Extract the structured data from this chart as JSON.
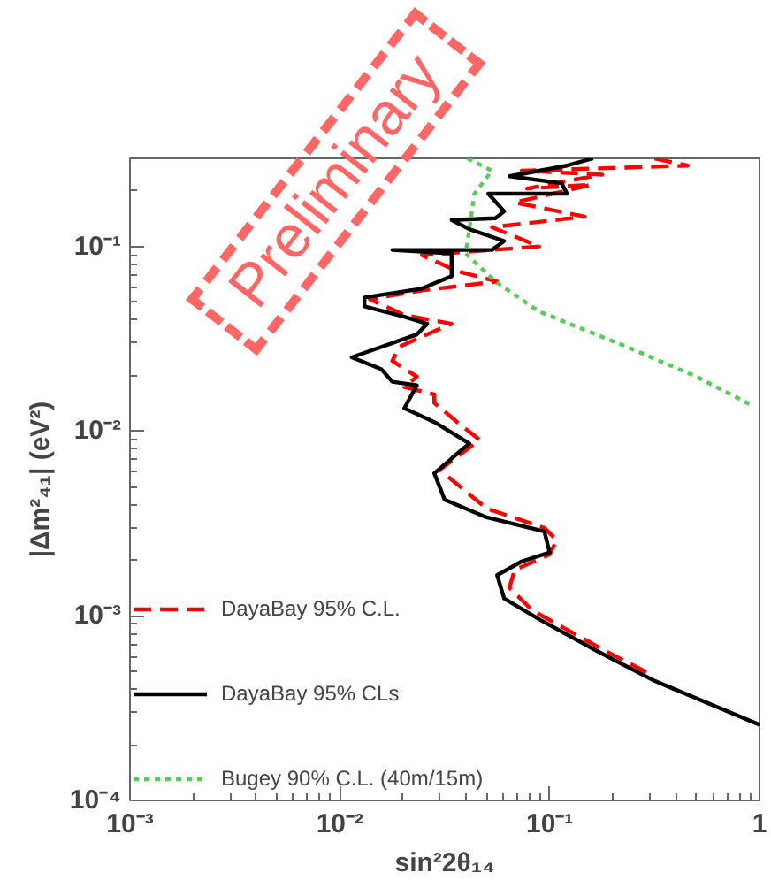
{
  "chart_data": {
    "type": "line",
    "xlabel": "sin²2θ₁₄",
    "ylabel": "|Δm²₄₁| (eV²)",
    "log": "xy",
    "grid": false,
    "legend": "bottom left",
    "marker": "none",
    "xlim": [
      0.001,
      1
    ],
    "ylim": [
      0.0001,
      0.3
    ],
    "xticks": [
      {
        "value": 0.001,
        "label": "10⁻³"
      },
      {
        "value": 0.01,
        "label": "10⁻²"
      },
      {
        "value": 0.1,
        "label": "10⁻¹"
      },
      1
    ],
    "yticks": [
      {
        "value": 0.0001,
        "label": "10⁻⁴"
      },
      {
        "value": 0.001,
        "label": "10⁻³"
      },
      {
        "value": 0.01,
        "label": "10⁻²"
      },
      {
        "value": 0.1,
        "label": "10⁻¹"
      }
    ],
    "annotations": [
      "Preliminary"
    ],
    "series": [
      {
        "name": "DayaBay 95% C.L.",
        "color": "#ff0000",
        "line_style": "dashed",
        "x": [
          0.316,
          0.455,
          0.0736,
          0.178,
          0.078,
          0.158,
          0.0681,
          0.147,
          0.0531,
          0.0891,
          0.0246,
          0.0362,
          0.0562,
          0.0246,
          0.0139,
          0.0203,
          0.0341,
          0.0261,
          0.0192,
          0.0178,
          0.0233,
          0.0203,
          0.0282,
          0.0282,
          0.0362,
          0.0464,
          0.0299,
          0.0501,
          0.0944,
          0.108,
          0.1,
          0.0681,
          0.0643,
          0.0826,
          0.178,
          0.299
        ],
        "values": [
          0.3,
          0.274,
          0.257,
          0.245,
          0.206,
          0.216,
          0.173,
          0.145,
          0.127,
          0.1,
          0.0896,
          0.0736,
          0.0645,
          0.0578,
          0.0518,
          0.0425,
          0.0381,
          0.0334,
          0.0286,
          0.024,
          0.0197,
          0.0173,
          0.0158,
          0.0142,
          0.0112,
          0.00896,
          0.00617,
          0.00381,
          0.00299,
          0.00257,
          0.00215,
          0.00177,
          0.00142,
          0.00107,
          0.000659,
          0.000485
        ]
      },
      {
        "name": "DayaBay 95% CLs",
        "color": "#000000",
        "line_style": "solid",
        "x": [
          0.161,
          0.121,
          0.0643,
          0.114,
          0.121,
          0.051,
          0.0607,
          0.0552,
          0.0341,
          0.0414,
          0.0607,
          0.0531,
          0.0178,
          0.0341,
          0.0341,
          0.0246,
          0.0131,
          0.0131,
          0.0203,
          0.0261,
          0.0233,
          0.0114,
          0.0158,
          0.0178,
          0.0233,
          0.0203,
          0.0282,
          0.0414,
          0.0282,
          0.0316,
          0.0501,
          0.0944,
          0.1,
          0.0736,
          0.0562,
          0.0607,
          0.0891,
          0.168,
          0.316,
          1.0
        ],
        "values": [
          0.3,
          0.274,
          0.24,
          0.22,
          0.193,
          0.193,
          0.155,
          0.142,
          0.139,
          0.124,
          0.107,
          0.0957,
          0.0957,
          0.0916,
          0.0689,
          0.0591,
          0.0529,
          0.0474,
          0.0416,
          0.0381,
          0.0334,
          0.0251,
          0.0216,
          0.0185,
          0.0177,
          0.0133,
          0.0112,
          0.00858,
          0.00591,
          0.00425,
          0.00341,
          0.00286,
          0.0022,
          0.00197,
          0.00166,
          0.00124,
          0.000957,
          0.000645,
          0.000444,
          0.000257
        ]
      },
      {
        "name": "Bugey 90% C.L. (40m/15m)",
        "color": "#55cc55",
        "line_style": "dotted",
        "x": [
          0.0406,
          0.0531,
          0.0438,
          0.0414,
          0.0398,
          0.0552,
          0.0891,
          0.233,
          0.501,
          0.908
        ],
        "values": [
          0.3,
          0.257,
          0.193,
          0.124,
          0.0916,
          0.0645,
          0.0444,
          0.0286,
          0.0197,
          0.0139
        ]
      }
    ]
  }
}
